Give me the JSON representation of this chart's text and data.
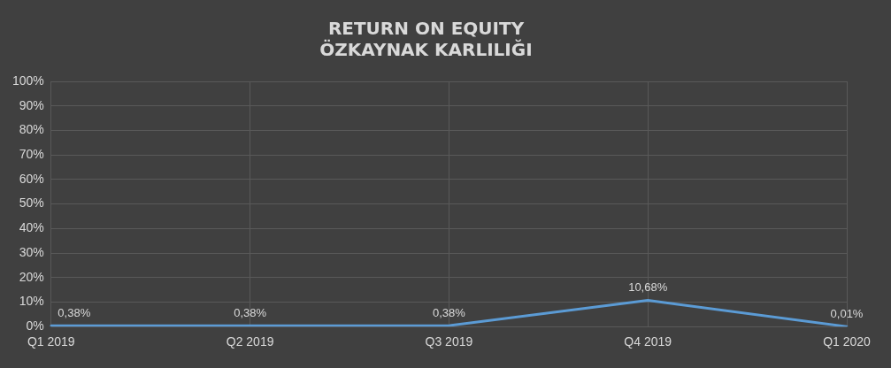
{
  "chart_data": {
    "type": "line",
    "title": "RETURN ON EQUITY\nÖZKAYNAK KARLILIĞI",
    "categories": [
      "Q1 2019",
      "Q2 2019",
      "Q3 2019",
      "Q4 2019",
      "Q1 2020"
    ],
    "series": [
      {
        "color": "#5b9bd5",
        "values": [
          0.38,
          0.38,
          0.38,
          10.68,
          0.01
        ],
        "value_labels": [
          "0,38%",
          "0,38%",
          "0,38%",
          "10,68%",
          "0,01%"
        ]
      }
    ],
    "ylim": [
      0,
      100
    ],
    "yticks": [
      {
        "value": 0,
        "label": "0%"
      },
      {
        "value": 10,
        "label": "10%"
      },
      {
        "value": 20,
        "label": "20%"
      },
      {
        "value": 30,
        "label": "30%"
      },
      {
        "value": 40,
        "label": "40%"
      },
      {
        "value": 50,
        "label": "50%"
      },
      {
        "value": 60,
        "label": "60%"
      },
      {
        "value": 70,
        "label": "70%"
      },
      {
        "value": 80,
        "label": "80%"
      },
      {
        "value": 90,
        "label": "90%"
      },
      {
        "value": 100,
        "label": "100%"
      }
    ],
    "grid": true,
    "legend": false,
    "marker": "none",
    "line_style": "solid"
  }
}
